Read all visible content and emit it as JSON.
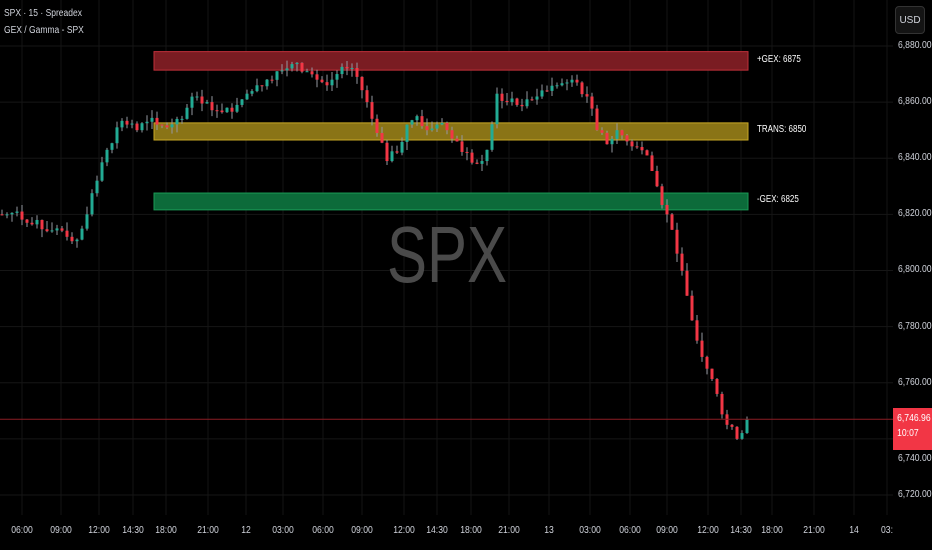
{
  "header": {
    "symbol_line": "SPX · 15 · Spreadex",
    "indicator_line": "GEX / Gamma - SPX",
    "currency": "USD"
  },
  "watermark": "SPX",
  "chart_data": {
    "type": "candlestick",
    "ylim": [
      6720,
      6880
    ],
    "y_ticks": [
      "6,880.00",
      "6,860.00",
      "6,840.00",
      "6,820.00",
      "6,800.00",
      "6,780.00",
      "6,760.00",
      "6,740.00",
      "6,720.00"
    ],
    "y_tick_values": [
      6880,
      6860,
      6840,
      6820,
      6800,
      6780,
      6760,
      6740,
      6720
    ],
    "x_ticks": [
      "06:00",
      "09:00",
      "12:00",
      "14:30",
      "18:00",
      "21:00",
      "12",
      "03:00",
      "06:00",
      "09:00",
      "12:00",
      "14:30",
      "18:00",
      "21:00",
      "13",
      "03:00",
      "06:00",
      "09:00",
      "12:00",
      "14:30",
      "18:00",
      "21:00",
      "14",
      "03:"
    ],
    "closes": [
      6820,
      6821,
      6817,
      6818,
      6814,
      6815,
      6812,
      6811,
      6820,
      6832,
      6843,
      6851,
      6852,
      6850,
      6853,
      6852,
      6851,
      6854,
      6858,
      6862,
      6860,
      6857,
      6858,
      6859,
      6863,
      6866,
      6868,
      6871,
      6872,
      6874,
      6871,
      6868,
      6866,
      6870,
      6872,
      6869,
      6860,
      6849,
      6839,
      6842,
      6852,
      6855,
      6850,
      6852,
      6850,
      6846,
      6842,
      6838,
      6843,
      6863,
      6860,
      6859,
      6861,
      6862,
      6864,
      6866,
      6867,
      6867,
      6862,
      6850,
      6845,
      6850,
      6846,
      6844,
      6841,
      6830,
      6820,
      6806,
      6791,
      6775,
      6765,
      6756,
      6745,
      6740,
      6746.96
    ],
    "up_color": "#22ab94",
    "down_color": "#f23645",
    "zones": [
      {
        "label": "+GEX: 6875",
        "top": 6878,
        "bottom": 6871.4,
        "fill": "#7a1c22",
        "border": "#c0303a"
      },
      {
        "label": "TRANS: 6850",
        "top": 6852.6,
        "bottom": 6846.5,
        "fill": "#8a7416",
        "border": "#c9a825"
      },
      {
        "label": "-GEX: 6825",
        "top": 6827.6,
        "bottom": 6821.6,
        "fill": "#0c6b3a",
        "border": "#1a9a55"
      }
    ],
    "last_price": "6,746.96",
    "last_price_value": 6746.96,
    "countdown": "10:07"
  }
}
